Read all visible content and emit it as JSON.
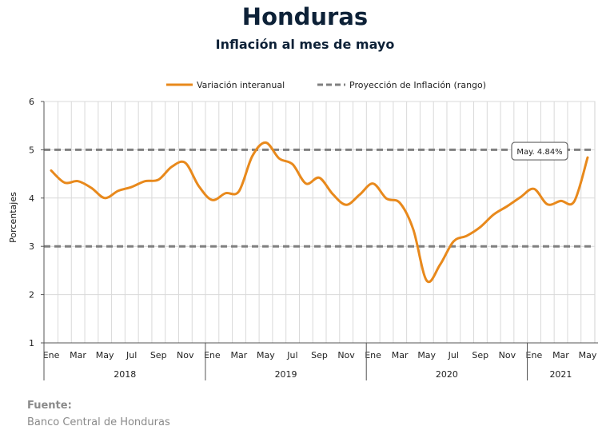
{
  "header": {
    "title": "Honduras",
    "subtitle": "Inflación al mes de mayo"
  },
  "source": {
    "label": "Fuente:",
    "value": "Banco Central de Honduras"
  },
  "chart_data": {
    "type": "line",
    "title": "",
    "xlabel": "",
    "ylabel": "Porcentajes",
    "ylim": [
      1,
      6
    ],
    "yticks": [
      "1",
      "2",
      "3",
      "4",
      "5",
      "6"
    ],
    "grid": true,
    "legend_position": "top",
    "month_labels": [
      "Ene",
      "Mar",
      "May",
      "Jul",
      "Sep",
      "Nov",
      "Ene",
      "Mar",
      "May",
      "Jul",
      "Sep",
      "Nov",
      "Ene",
      "Mar",
      "May",
      "Jul",
      "Sep",
      "Nov",
      "Ene",
      "Mar",
      "May"
    ],
    "years": [
      "2018",
      "2019",
      "2020",
      "2021"
    ],
    "x": [
      "Ene 2018",
      "Feb 2018",
      "Mar 2018",
      "Abr 2018",
      "May 2018",
      "Jun 2018",
      "Jul 2018",
      "Ago 2018",
      "Sep 2018",
      "Oct 2018",
      "Nov 2018",
      "Dic 2018",
      "Ene 2019",
      "Feb 2019",
      "Mar 2019",
      "Abr 2019",
      "May 2019",
      "Jun 2019",
      "Jul 2019",
      "Ago 2019",
      "Sep 2019",
      "Oct 2019",
      "Nov 2019",
      "Dic 2019",
      "Ene 2020",
      "Feb 2020",
      "Mar 2020",
      "Abr 2020",
      "May 2020",
      "Jun 2020",
      "Jul 2020",
      "Ago 2020",
      "Sep 2020",
      "Oct 2020",
      "Nov 2020",
      "Dic 2020",
      "Ene 2021",
      "Feb 2021",
      "Mar 2021",
      "Abr 2021",
      "May 2021"
    ],
    "series": [
      {
        "name": "Variación interanual",
        "color": "#e8891c",
        "style": "solid",
        "values": [
          4.57,
          4.32,
          4.35,
          4.21,
          4.0,
          4.15,
          4.23,
          4.35,
          4.38,
          4.65,
          4.73,
          4.25,
          3.96,
          4.1,
          4.14,
          4.87,
          5.15,
          4.82,
          4.7,
          4.3,
          4.42,
          4.08,
          3.86,
          4.07,
          4.3,
          3.99,
          3.9,
          3.35,
          2.29,
          2.62,
          3.1,
          3.22,
          3.4,
          3.66,
          3.83,
          4.02,
          4.19,
          3.87,
          3.94,
          3.93,
          4.84
        ]
      },
      {
        "name": "Proyección de Inflación (rango)",
        "color": "#808080",
        "style": "dashed",
        "band": [
          3,
          5
        ]
      }
    ],
    "annotation": {
      "text": "May. 4.84%",
      "x": "May 2021",
      "y": 4.84
    }
  }
}
